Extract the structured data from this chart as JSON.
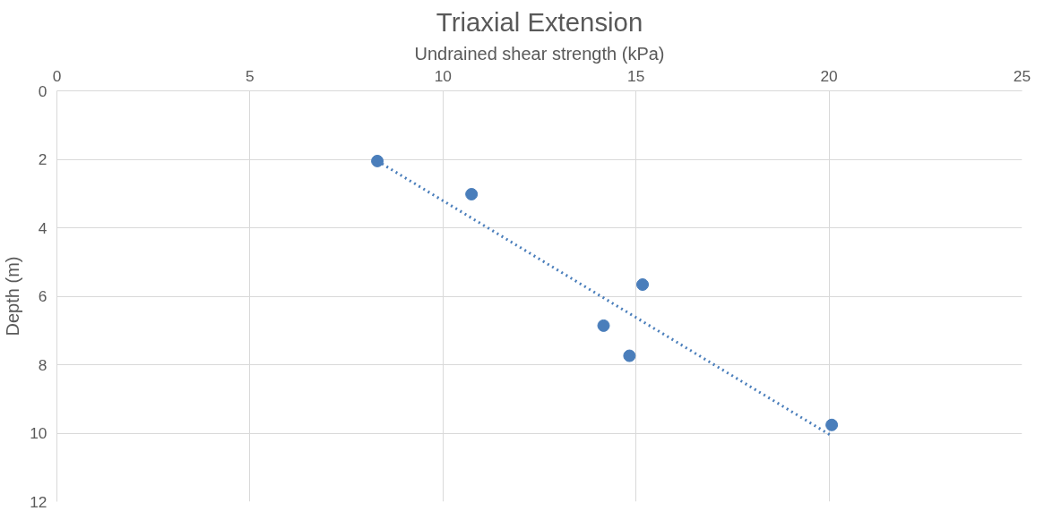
{
  "chart_data": {
    "type": "scatter",
    "title": "Triaxial Extension",
    "xlabel": "Undrained shear strength (kPa)",
    "ylabel": "Depth (m)",
    "xlim": [
      0,
      25
    ],
    "xticks": [
      0,
      5,
      10,
      15,
      20,
      25
    ],
    "ylim": [
      12,
      0
    ],
    "yticks": [
      0,
      2,
      4,
      6,
      8,
      10,
      12
    ],
    "grid": true,
    "marker": "circle",
    "series": [
      {
        "color": "#4a7ebb",
        "x": [
          8.3,
          10.74,
          15.17,
          14.16,
          14.83,
          20.07
        ],
        "values": [
          2.05,
          3.02,
          5.66,
          6.86,
          7.74,
          9.76
        ]
      },
      {
        "type": "line",
        "line_style": "dotted",
        "marker": "none",
        "color": "#4a7ebb",
        "x": [
          8.3,
          20.07
        ],
        "values": [
          2.05,
          10.08
        ]
      }
    ]
  }
}
